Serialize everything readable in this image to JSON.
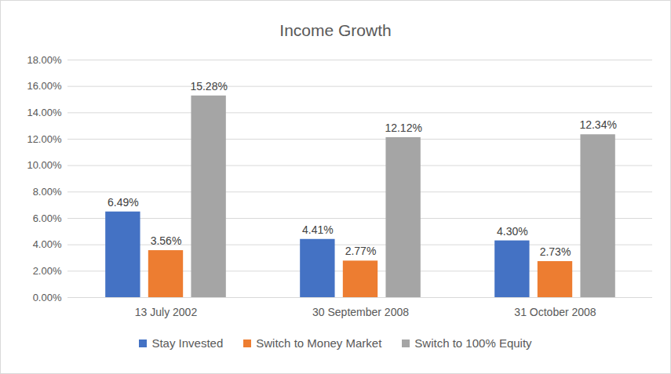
{
  "chart_data": {
    "type": "bar",
    "title": "Income Growth",
    "categories": [
      "13 July 2002",
      "30 September 2008",
      "31 October 2008"
    ],
    "series": [
      {
        "name": "Stay Invested",
        "color": "#4472c4",
        "values": [
          6.49,
          4.41,
          4.3
        ],
        "value_labels": [
          "6.49%",
          "4.41%",
          "4.30%"
        ]
      },
      {
        "name": "Switch to Money Market",
        "color": "#ed7d31",
        "values": [
          3.56,
          2.77,
          2.73
        ],
        "value_labels": [
          "3.56%",
          "2.77%",
          "2.73%"
        ]
      },
      {
        "name": "Switch to 100% Equity",
        "color": "#a5a5a5",
        "values": [
          15.28,
          12.12,
          12.34
        ],
        "value_labels": [
          "15.28%",
          "12.12%",
          "12.34%"
        ]
      }
    ],
    "ylim": [
      0,
      18
    ],
    "yticks": [
      {
        "value": 0,
        "label": "0.00%"
      },
      {
        "value": 2,
        "label": "2.00%"
      },
      {
        "value": 4,
        "label": "4.00%"
      },
      {
        "value": 6,
        "label": "6.00%"
      },
      {
        "value": 8,
        "label": "8.00%"
      },
      {
        "value": 10,
        "label": "10.00%"
      },
      {
        "value": 12,
        "label": "12.00%"
      },
      {
        "value": 14,
        "label": "14.00%"
      },
      {
        "value": 16,
        "label": "16.00%"
      },
      {
        "value": 18,
        "label": "18.00%"
      }
    ],
    "grid": true,
    "legend": "bottom",
    "data_labels": true
  }
}
